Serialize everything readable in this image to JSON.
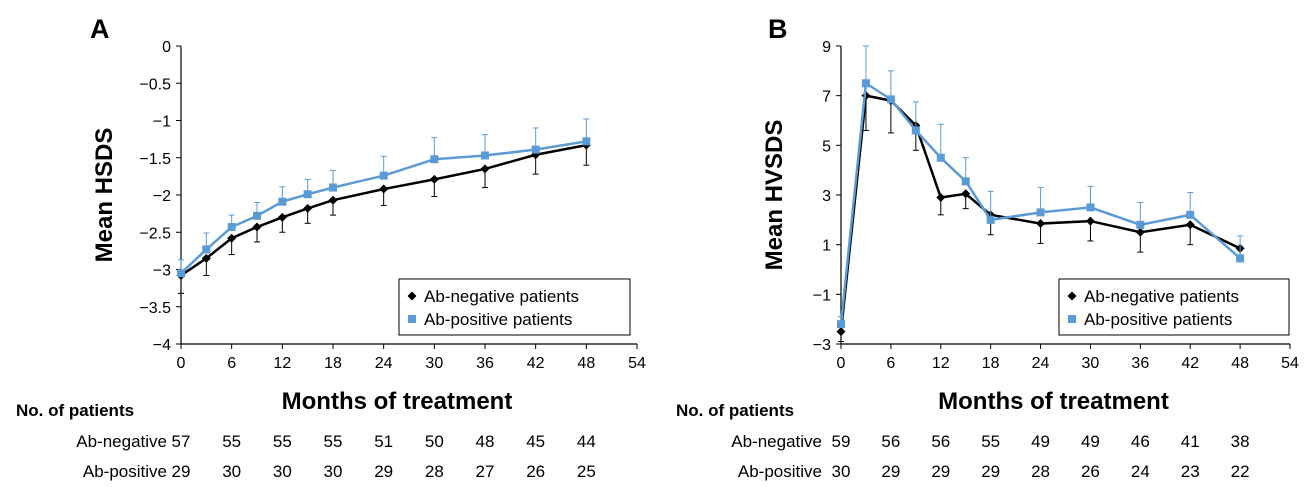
{
  "chart_data": [
    {
      "panel_label": "A",
      "type": "line",
      "xlabel": "Months of treatment",
      "ylabel": "Mean HSDS",
      "xlim": [
        0,
        54
      ],
      "ylim": [
        -4,
        0
      ],
      "x_ticks": [
        "0",
        "6",
        "12",
        "18",
        "24",
        "30",
        "36",
        "42",
        "48",
        "54"
      ],
      "y_ticks": [
        "0",
        "−0.5",
        "−1",
        "−1.5",
        "−2",
        "−2.5",
        "−3",
        "−3.5",
        "−4"
      ],
      "legend_position": "bottom-right",
      "grid": false,
      "series": [
        {
          "name": "Ab-negative patients",
          "color": "#000000",
          "marker": "diamond",
          "error_direction": "down",
          "x": [
            0,
            3,
            6,
            9,
            12,
            15,
            18,
            24,
            30,
            36,
            42,
            48
          ],
          "y": [
            -3.08,
            -2.85,
            -2.58,
            -2.43,
            -2.3,
            -2.18,
            -2.07,
            -1.92,
            -1.79,
            -1.65,
            -1.46,
            -1.33
          ],
          "error": [
            0.24,
            0.23,
            0.22,
            0.2,
            0.2,
            0.2,
            0.2,
            0.22,
            0.23,
            0.25,
            0.26,
            0.27
          ]
        },
        {
          "name": "Ab-positive patients",
          "color": "#5b9bd5",
          "marker": "square",
          "error_direction": "up",
          "x": [
            0,
            3,
            6,
            9,
            12,
            15,
            18,
            24,
            30,
            36,
            42,
            48
          ],
          "y": [
            -3.05,
            -2.73,
            -2.43,
            -2.28,
            -2.09,
            -1.99,
            -1.9,
            -1.74,
            -1.52,
            -1.47,
            -1.39,
            -1.28
          ],
          "error": [
            0.18,
            0.22,
            0.16,
            0.18,
            0.2,
            0.2,
            0.23,
            0.26,
            0.29,
            0.28,
            0.29,
            0.3
          ]
        }
      ],
      "patients": {
        "header": "No. of patients",
        "rows": [
          {
            "label": "Ab-negative",
            "values": [
              "57",
              "55",
              "55",
              "55",
              "51",
              "50",
              "48",
              "45",
              "44"
            ]
          },
          {
            "label": "Ab-positive",
            "values": [
              "29",
              "30",
              "30",
              "30",
              "29",
              "28",
              "27",
              "26",
              "25"
            ]
          }
        ]
      }
    },
    {
      "panel_label": "B",
      "type": "line",
      "xlabel": "Months of treatment",
      "ylabel": "Mean HVSDS",
      "xlim": [
        0,
        54
      ],
      "ylim": [
        -3,
        9
      ],
      "x_ticks": [
        "0",
        "6",
        "12",
        "18",
        "24",
        "30",
        "36",
        "42",
        "48",
        "54"
      ],
      "y_ticks": [
        "9",
        "7",
        "5",
        "3",
        "1",
        "−1",
        "−3"
      ],
      "legend_position": "bottom-right",
      "grid": false,
      "series": [
        {
          "name": "Ab-negative patients",
          "color": "#000000",
          "marker": "diamond",
          "error_direction": "down",
          "x": [
            0,
            3,
            6,
            9,
            12,
            15,
            18,
            24,
            30,
            36,
            42,
            48
          ],
          "y": [
            -2.5,
            7.0,
            6.8,
            5.8,
            2.9,
            3.05,
            2.2,
            1.85,
            1.95,
            1.5,
            1.8,
            0.85
          ],
          "error": [
            0.4,
            1.4,
            1.3,
            1.0,
            0.7,
            0.6,
            0.8,
            0.8,
            0.8,
            0.8,
            0.8,
            0.5
          ]
        },
        {
          "name": "Ab-positive patients",
          "color": "#5b9bd5",
          "marker": "square",
          "error_direction": "up",
          "x": [
            0,
            3,
            6,
            9,
            12,
            15,
            18,
            24,
            30,
            36,
            42,
            48
          ],
          "y": [
            -2.2,
            7.5,
            6.85,
            5.6,
            4.5,
            3.55,
            2.0,
            2.3,
            2.5,
            1.8,
            2.2,
            0.45
          ],
          "error": [
            0.3,
            1.5,
            1.15,
            1.15,
            1.35,
            0.95,
            1.15,
            1.0,
            0.85,
            0.9,
            0.9,
            0.9
          ]
        }
      ],
      "patients": {
        "header": "No. of patients",
        "rows": [
          {
            "label": "Ab-negative",
            "values": [
              "59",
              "56",
              "56",
              "55",
              "49",
              "49",
              "46",
              "41",
              "38"
            ]
          },
          {
            "label": "Ab-positive",
            "values": [
              "30",
              "29",
              "29",
              "29",
              "28",
              "26",
              "24",
              "23",
              "22"
            ]
          }
        ]
      }
    }
  ]
}
